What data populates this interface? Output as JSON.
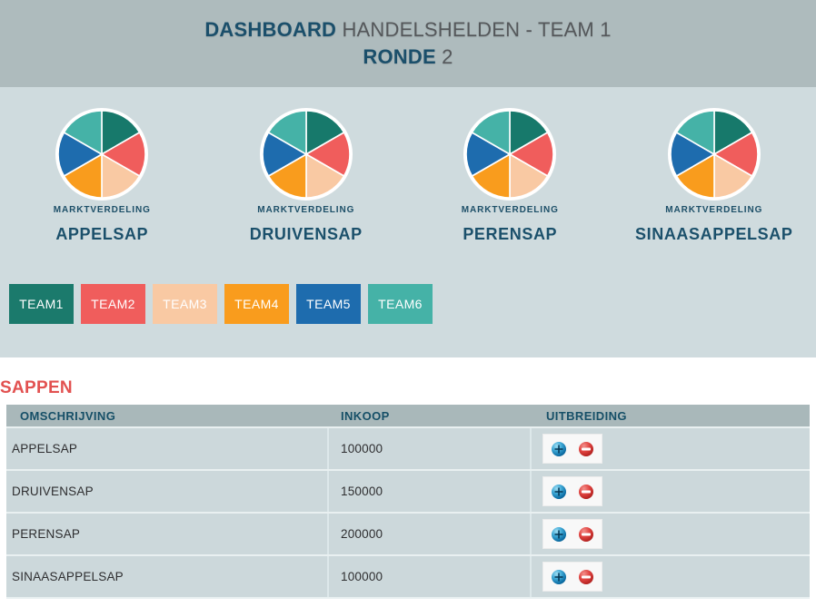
{
  "header": {
    "title_bold": "DASHBOARD",
    "title_rest": " HANDELSHELDEN - TEAM 1",
    "subtitle_bold": "RONDE",
    "subtitle_rest": " 2"
  },
  "teams": [
    {
      "label": "TEAM1",
      "color": "#1b7a6c"
    },
    {
      "label": "TEAM2",
      "color": "#f05d5c"
    },
    {
      "label": "TEAM3",
      "color": "#f9c9a3"
    },
    {
      "label": "TEAM4",
      "color": "#f99c1d"
    },
    {
      "label": "TEAM5",
      "color": "#1e6cae"
    },
    {
      "label": "TEAM6",
      "color": "#45b2a7"
    }
  ],
  "chart_data": [
    {
      "type": "pie",
      "title": "APPELSAP",
      "label": "MARKTVERDELING",
      "categories": [
        "TEAM1",
        "TEAM2",
        "TEAM3",
        "TEAM4",
        "TEAM5",
        "TEAM6"
      ],
      "values": [
        16.7,
        16.7,
        16.7,
        16.7,
        16.7,
        16.7
      ],
      "colors": [
        "#17796b",
        "#f05d5c",
        "#f9c9a3",
        "#f99c1d",
        "#1e6cae",
        "#45b2a7"
      ],
      "legend_position": "none"
    },
    {
      "type": "pie",
      "title": "DRUIVENSAP",
      "label": "MARKTVERDELING",
      "categories": [
        "TEAM1",
        "TEAM2",
        "TEAM3",
        "TEAM4",
        "TEAM5",
        "TEAM6"
      ],
      "values": [
        16.7,
        16.7,
        16.7,
        16.7,
        16.7,
        16.7
      ],
      "colors": [
        "#17796b",
        "#f05d5c",
        "#f9c9a3",
        "#f99c1d",
        "#1e6cae",
        "#45b2a7"
      ],
      "legend_position": "none"
    },
    {
      "type": "pie",
      "title": "PERENSAP",
      "label": "MARKTVERDELING",
      "categories": [
        "TEAM1",
        "TEAM2",
        "TEAM3",
        "TEAM4",
        "TEAM5",
        "TEAM6"
      ],
      "values": [
        16.7,
        16.7,
        16.7,
        16.7,
        16.7,
        16.7
      ],
      "colors": [
        "#17796b",
        "#f05d5c",
        "#f9c9a3",
        "#f99c1d",
        "#1e6cae",
        "#45b2a7"
      ],
      "legend_position": "none"
    },
    {
      "type": "pie",
      "title": "SINAASAPPELSAP",
      "label": "MARKTVERDELING",
      "categories": [
        "TEAM1",
        "TEAM2",
        "TEAM3",
        "TEAM4",
        "TEAM5",
        "TEAM6"
      ],
      "values": [
        16.7,
        16.7,
        16.7,
        16.7,
        16.7,
        16.7
      ],
      "colors": [
        "#17796b",
        "#f05d5c",
        "#f9c9a3",
        "#f99c1d",
        "#1e6cae",
        "#45b2a7"
      ],
      "legend_position": "none"
    }
  ],
  "sappen": {
    "section_title": "SAPPEN",
    "table": {
      "headers": [
        "OMSCHRIJVING",
        "INKOOP",
        "UITBREIDING"
      ],
      "rows": [
        {
          "omschrijving": "APPELSAP",
          "inkoop": "100000"
        },
        {
          "omschrijving": "DRUIVENSAP",
          "inkoop": "150000"
        },
        {
          "omschrijving": "PERENSAP",
          "inkoop": "200000"
        },
        {
          "omschrijving": "SINAASAPPELSAP",
          "inkoop": "100000"
        }
      ],
      "actions": {
        "add_icon": "plus-orb-icon",
        "remove_icon": "minus-orb-icon"
      }
    }
  },
  "colors": {
    "page_header_bg": "#aebbbd",
    "charts_bg": "#cfdbde",
    "table_header_bg": "#a9b8ba",
    "row_bg": "#ccd8db",
    "dark_blue_text": "#1b4f6b",
    "gray_text": "#55585b",
    "section_title_red": "#e25150"
  }
}
